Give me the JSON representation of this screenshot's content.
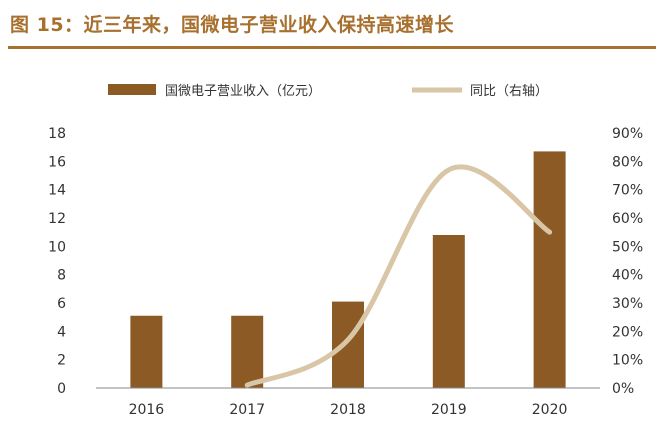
{
  "figure": {
    "title": "图 15：近三年来，国微电子营业收入保持高速增长"
  },
  "colors": {
    "title": "#a8702f",
    "bar": "#8b5a25",
    "line": "#d8c6a6",
    "axis": "#888888",
    "text": "#333333"
  },
  "chart_data": {
    "type": "bar",
    "categories": [
      "2016",
      "2017",
      "2018",
      "2019",
      "2020"
    ],
    "series": [
      {
        "name": "国微电子营业收入（亿元）",
        "type": "bar",
        "axis": "left",
        "values": [
          5.1,
          5.1,
          6.1,
          10.8,
          16.7
        ]
      },
      {
        "name": "同比（右轴）",
        "type": "line",
        "axis": "right",
        "values": [
          null,
          1,
          17,
          77,
          55
        ]
      }
    ],
    "ylim": [
      0,
      18
    ],
    "yticks": [
      "0",
      "2",
      "4",
      "6",
      "8",
      "10",
      "12",
      "14",
      "16",
      "18"
    ],
    "y2lim": [
      0,
      90
    ],
    "y2ticks": [
      "0%",
      "10%",
      "20%",
      "30%",
      "40%",
      "50%",
      "60%",
      "70%",
      "80%",
      "90%"
    ],
    "legend_position": "top",
    "grid": false
  }
}
